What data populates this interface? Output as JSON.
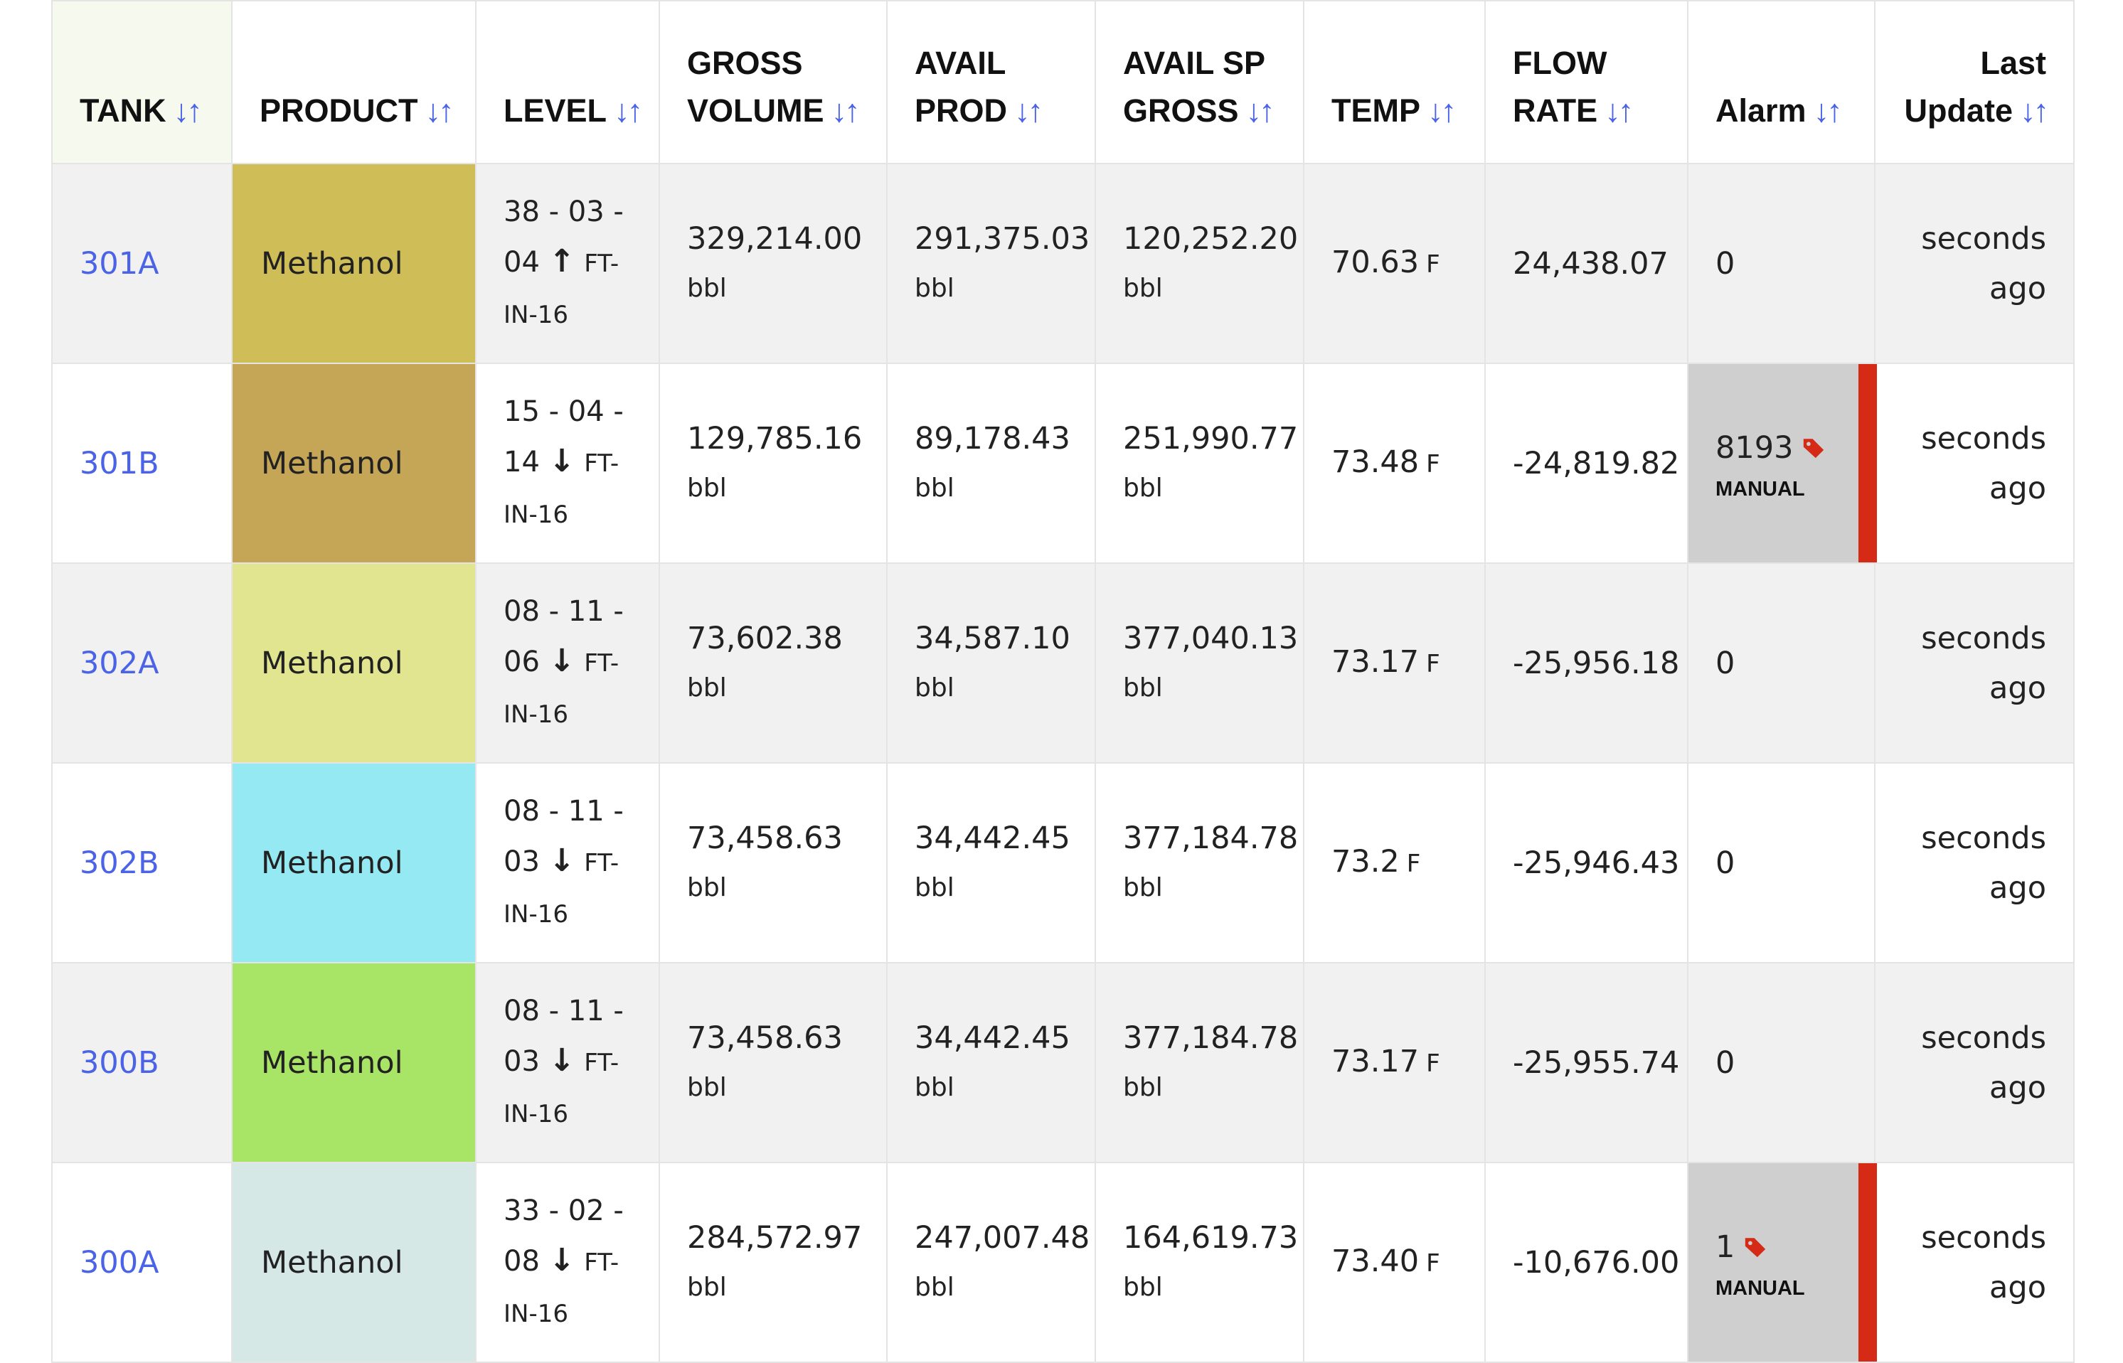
{
  "headers": {
    "tank": "TANK",
    "product": "PRODUCT",
    "level": "LEVEL",
    "gross_volume_l1": "GROSS",
    "gross_volume_l2": "VOLUME",
    "avail_prod_l1": "AVAIL",
    "avail_prod_l2": "PROD",
    "avail_sp_l1": "AVAIL SP",
    "avail_sp_l2": "GROSS",
    "temp": "TEMP",
    "flow_l1": "FLOW",
    "flow_l2": "RATE",
    "alarm": "Alarm",
    "last_l1": "Last",
    "last_l2": "Update",
    "sort_icon": "↓↑"
  },
  "rows": [
    {
      "tank": "301A",
      "product": "Methanol",
      "product_color": "#cfbd58",
      "level_a": "38 - 03 -",
      "level_b": "04",
      "level_dir": "up",
      "level_ft": "FT-",
      "level_c": "IN-16",
      "gross": "329,214.00",
      "gross_unit": "bbl",
      "avail": "291,375.03",
      "avail_unit": "bbl",
      "sp": "120,252.20",
      "sp_unit": "bbl",
      "temp": "70.63",
      "temp_unit": "F",
      "flow": "24,438.07",
      "alarm": "0",
      "alarm_manual": false,
      "alarm_label": "",
      "last_a": "seconds",
      "last_b": "ago"
    },
    {
      "tank": "301B",
      "product": "Methanol",
      "product_color": "#c5a656",
      "level_a": "15 - 04 -",
      "level_b": "14",
      "level_dir": "down",
      "level_ft": "FT-",
      "level_c": "IN-16",
      "gross": "129,785.16",
      "gross_unit": "bbl",
      "avail": "89,178.43",
      "avail_unit": "bbl",
      "sp": "251,990.77",
      "sp_unit": "bbl",
      "temp": "73.48",
      "temp_unit": "F",
      "flow": "-24,819.82",
      "alarm": "8193",
      "alarm_manual": true,
      "alarm_label": "MANUAL",
      "last_a": "seconds",
      "last_b": "ago"
    },
    {
      "tank": "302A",
      "product": "Methanol",
      "product_color": "#e1e58f",
      "level_a": "08 - 11 -",
      "level_b": "06",
      "level_dir": "down",
      "level_ft": "FT-",
      "level_c": "IN-16",
      "gross": "73,602.38",
      "gross_unit": "bbl",
      "avail": "34,587.10",
      "avail_unit": "bbl",
      "sp": "377,040.13",
      "sp_unit": "bbl",
      "temp": "73.17",
      "temp_unit": "F",
      "flow": "-25,956.18",
      "alarm": "0",
      "alarm_manual": false,
      "alarm_label": "",
      "last_a": "seconds",
      "last_b": "ago"
    },
    {
      "tank": "302B",
      "product": "Methanol",
      "product_color": "#94e9f2",
      "level_a": "08 - 11 -",
      "level_b": "03",
      "level_dir": "down",
      "level_ft": "FT-",
      "level_c": "IN-16",
      "gross": "73,458.63",
      "gross_unit": "bbl",
      "avail": "34,442.45",
      "avail_unit": "bbl",
      "sp": "377,184.78",
      "sp_unit": "bbl",
      "temp": "73.2",
      "temp_unit": "F",
      "flow": "-25,946.43",
      "alarm": "0",
      "alarm_manual": false,
      "alarm_label": "",
      "last_a": "seconds",
      "last_b": "ago"
    },
    {
      "tank": "300B",
      "product": "Methanol",
      "product_color": "#a8e465",
      "level_a": "08 - 11 -",
      "level_b": "03",
      "level_dir": "down",
      "level_ft": "FT-",
      "level_c": "IN-16",
      "gross": "73,458.63",
      "gross_unit": "bbl",
      "avail": "34,442.45",
      "avail_unit": "bbl",
      "sp": "377,184.78",
      "sp_unit": "bbl",
      "temp": "73.17",
      "temp_unit": "F",
      "flow": "-25,955.74",
      "alarm": "0",
      "alarm_manual": false,
      "alarm_label": "",
      "last_a": "seconds",
      "last_b": "ago"
    },
    {
      "tank": "300A",
      "product": "Methanol",
      "product_color": "#d5e8e5",
      "level_a": "33 - 02 -",
      "level_b": "08",
      "level_dir": "down",
      "level_ft": "FT-",
      "level_c": "IN-16",
      "gross": "284,572.97",
      "gross_unit": "bbl",
      "avail": "247,007.48",
      "avail_unit": "bbl",
      "sp": "164,619.73",
      "sp_unit": "bbl",
      "temp": "73.40",
      "temp_unit": "F",
      "flow": "-10,676.00",
      "alarm": "1",
      "alarm_manual": true,
      "alarm_label": "MANUAL",
      "last_a": "seconds",
      "last_b": "ago"
    }
  ],
  "colors": {
    "link": "#4a63e7",
    "alarm_bar": "#d42a16",
    "tag": "#d42a16"
  },
  "icons": {
    "sort": "sort-arrows-icon",
    "up": "arrow-up-icon",
    "down": "arrow-down-icon",
    "tag": "price-tag-icon"
  }
}
